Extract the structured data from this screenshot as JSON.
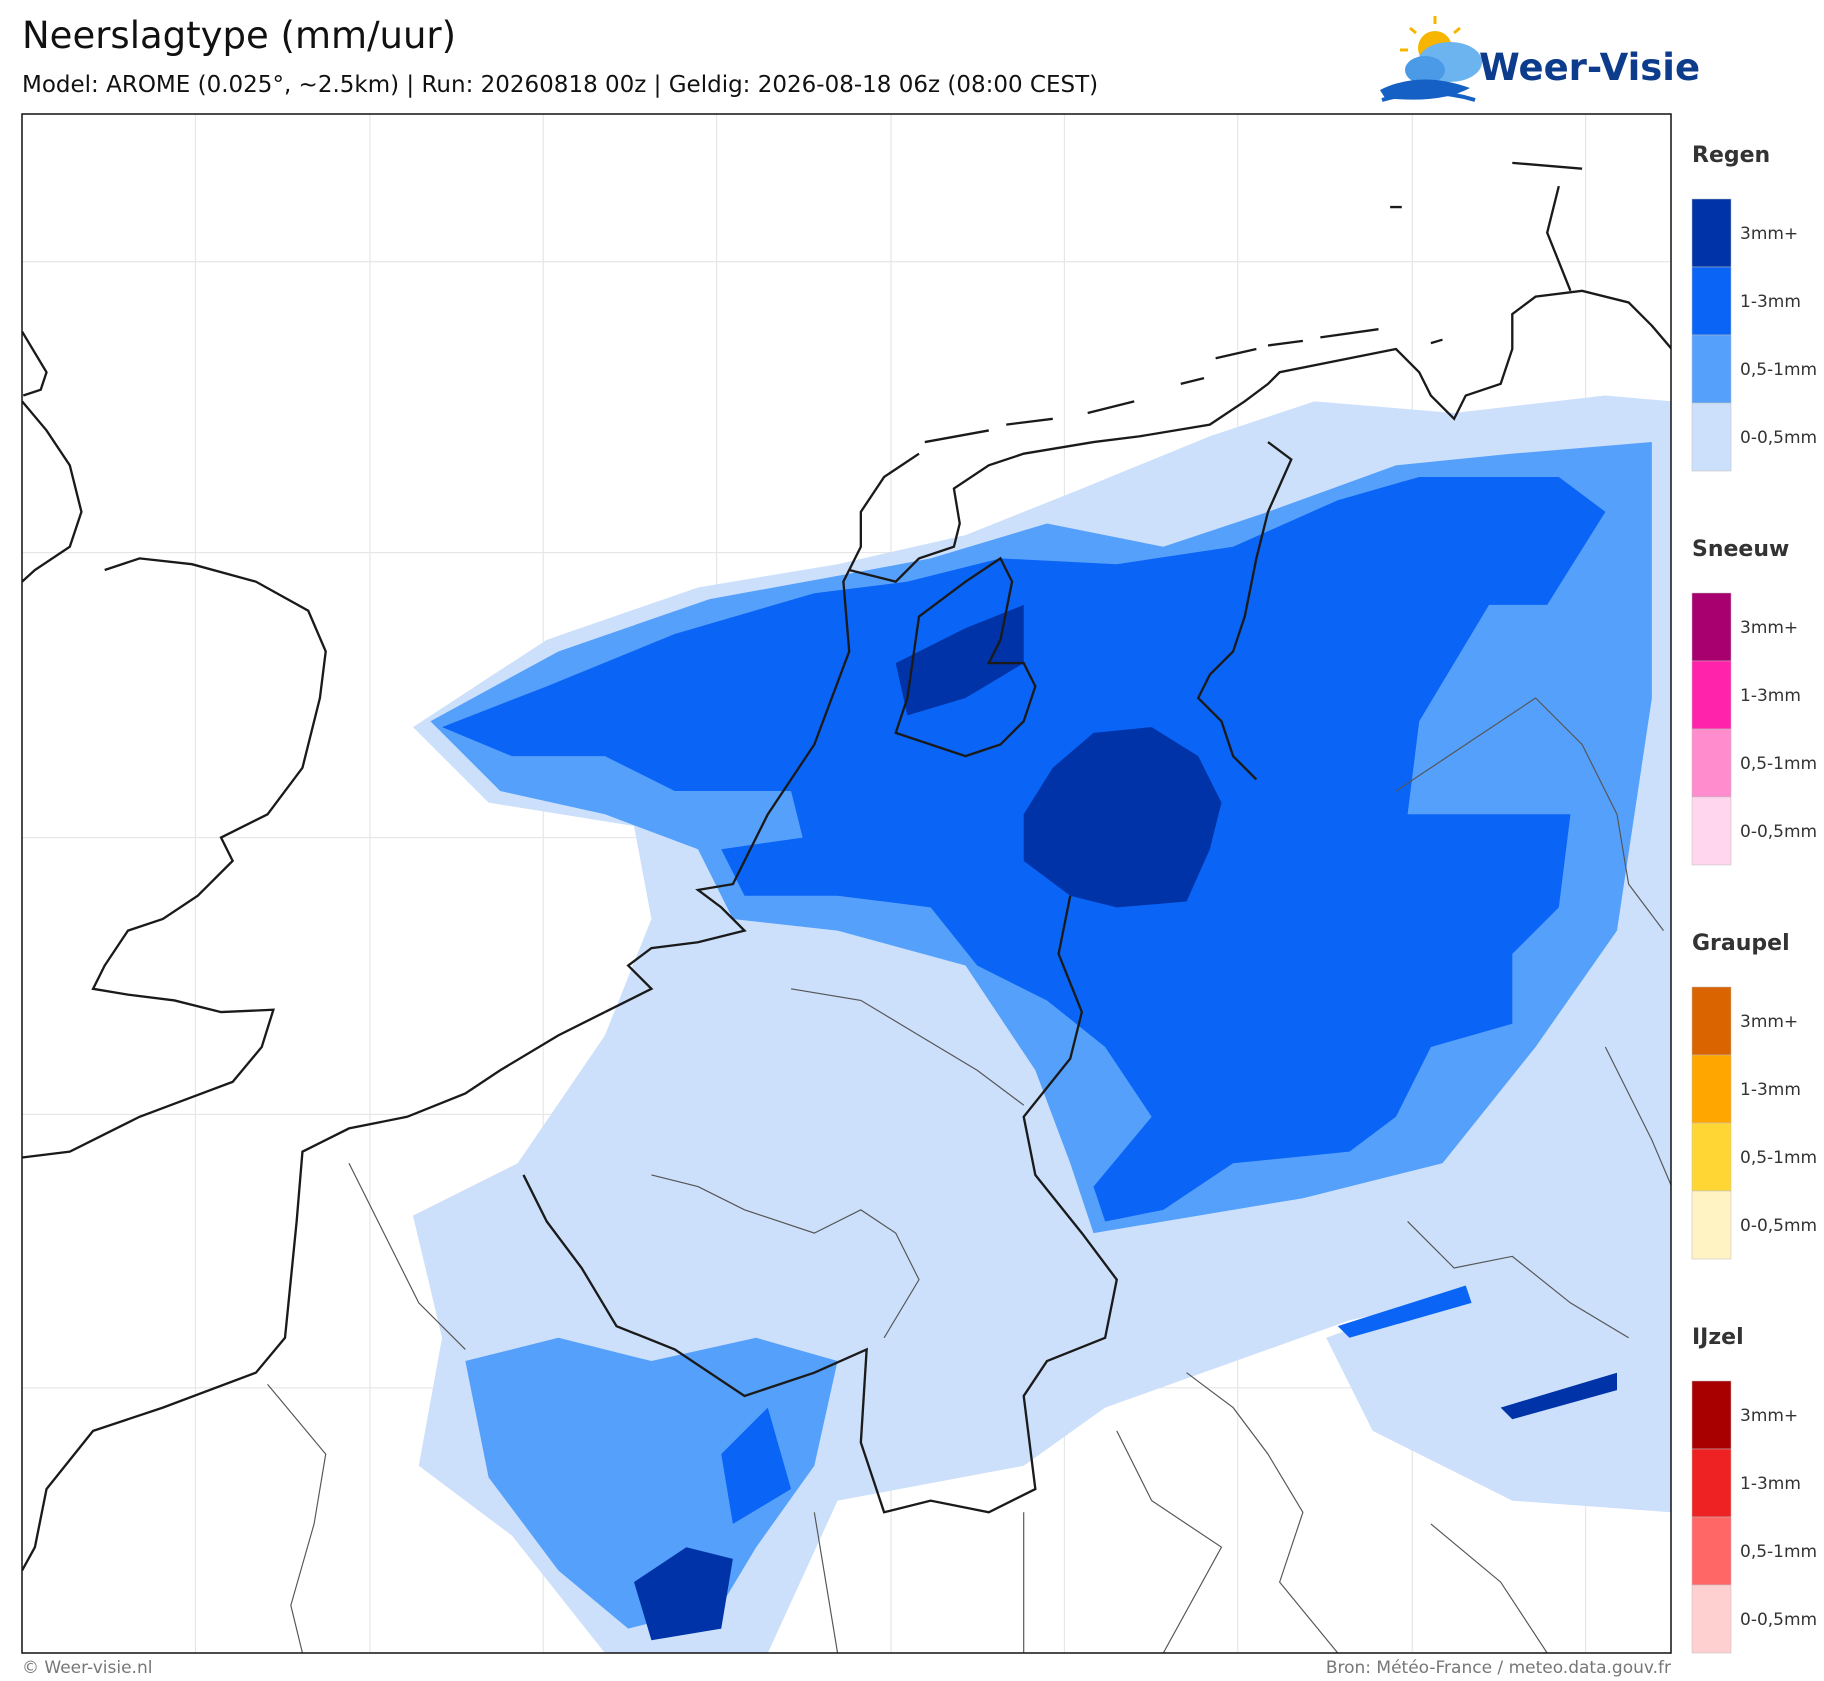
{
  "header": {
    "title": "Neerslagtype (mm/uur)",
    "subtitle": "Model: AROME (0.025°, ~2.5km)  |  Run: 20260818 00z  |  Geldig: 2026-08-18 06z (08:00 CEST)",
    "logo": "Weer-Visie"
  },
  "legend": [
    {
      "title": "Regen",
      "items": [
        {
          "label": "3mm+",
          "color": "#0033a8"
        },
        {
          "label": "1-3mm",
          "color": "#0a64f5"
        },
        {
          "label": "0,5-1mm",
          "color": "#55a0fb"
        },
        {
          "label": "0-0,5mm",
          "color": "#cce0fb"
        }
      ]
    },
    {
      "title": "Sneeuw",
      "items": [
        {
          "label": "3mm+",
          "color": "#a8006e"
        },
        {
          "label": "1-3mm",
          "color": "#ff22aa"
        },
        {
          "label": "0,5-1mm",
          "color": "#ff8ccc"
        },
        {
          "label": "0-0,5mm",
          "color": "#ffd6ee"
        }
      ]
    },
    {
      "title": "Graupel",
      "items": [
        {
          "label": "3mm+",
          "color": "#d96400"
        },
        {
          "label": "1-3mm",
          "color": "#ffa600"
        },
        {
          "label": "0,5-1mm",
          "color": "#ffd633"
        },
        {
          "label": "0-0,5mm",
          "color": "#fff3c4"
        }
      ]
    },
    {
      "title": "IJzel",
      "items": [
        {
          "label": "3mm+",
          "color": "#a80000"
        },
        {
          "label": "1-3mm",
          "color": "#ee2222"
        },
        {
          "label": "0,5-1mm",
          "color": "#ff6666"
        },
        {
          "label": "0-0,5mm",
          "color": "#ffd0d0"
        }
      ]
    }
  ],
  "footer": {
    "left": "© Weer-visie.nl",
    "right": "Bron: Météo-France / meteo.data.gouv.fr"
  }
}
